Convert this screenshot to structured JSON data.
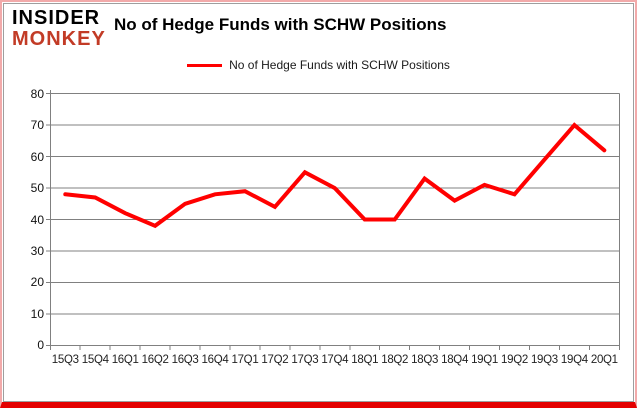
{
  "header": {
    "logo_line1": "INSIDER",
    "logo_line2": "MONKEY",
    "title": "No of Hedge Funds with SCHW Positions"
  },
  "legend": {
    "label": "No of Hedge Funds with SCHW Positions"
  },
  "chart_data": {
    "type": "line",
    "title": "No of Hedge Funds with SCHW Positions",
    "categories": [
      "15Q3",
      "15Q4",
      "16Q1",
      "16Q2",
      "16Q3",
      "16Q4",
      "17Q1",
      "17Q2",
      "17Q3",
      "17Q4",
      "18Q1",
      "18Q2",
      "18Q3",
      "18Q4",
      "19Q1",
      "19Q2",
      "19Q3",
      "19Q4",
      "20Q1"
    ],
    "series": [
      {
        "name": "No of Hedge Funds with SCHW Positions",
        "values": [
          48,
          47,
          42,
          38,
          45,
          48,
          49,
          44,
          55,
          50,
          40,
          40,
          53,
          46,
          51,
          48,
          59,
          70,
          62
        ],
        "color": "#ff0000"
      }
    ],
    "xlabel": "",
    "ylabel": "",
    "ylim": [
      0,
      80
    ],
    "ytick_step": 10,
    "grid": true,
    "legend_position": "top"
  },
  "colors": {
    "series_line": "#ff0000",
    "gridline": "#808080",
    "logo_accent": "#c23b26",
    "border_side": "#f2aaaa",
    "border_bottom": "#e40000",
    "background": "#ffffff"
  }
}
